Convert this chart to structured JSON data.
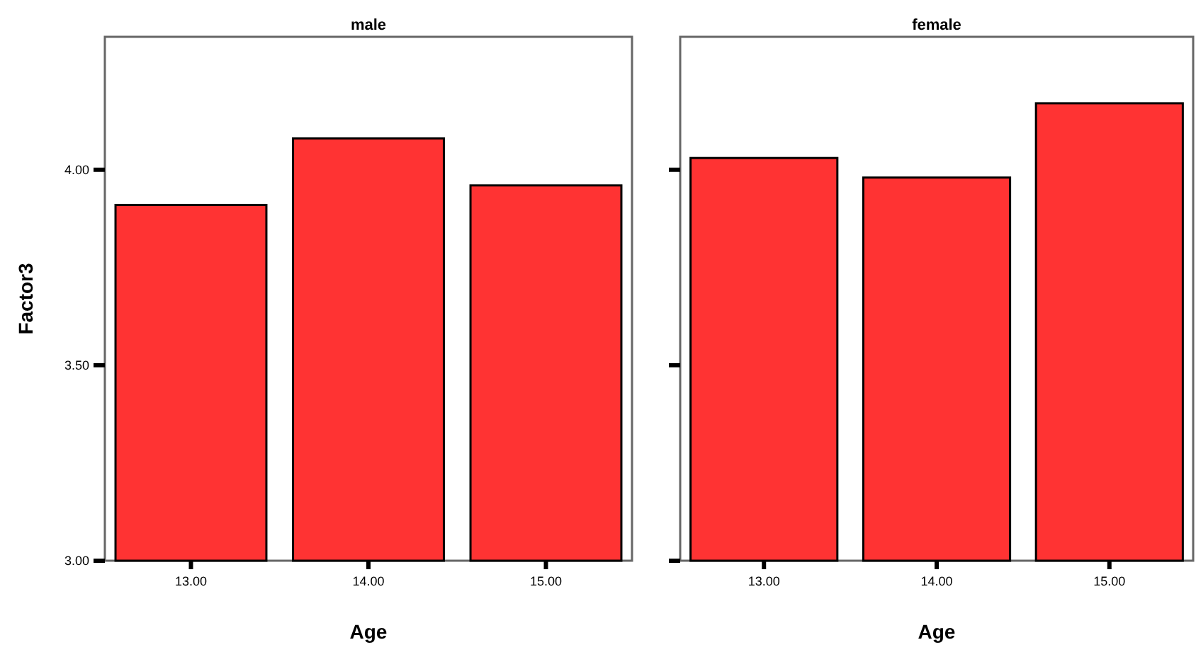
{
  "chart_data": [
    {
      "type": "bar",
      "title": "male",
      "xlabel": "Age",
      "ylabel": "Factor3",
      "categories": [
        "13.00",
        "14.00",
        "15.00"
      ],
      "values": [
        3.91,
        4.08,
        3.96
      ],
      "color": "#ff3333",
      "ylim": [
        3.0,
        4.34
      ],
      "yticks": [
        {
          "value": 3.0,
          "label": "3.00"
        },
        {
          "value": 3.5,
          "label": "3.50"
        },
        {
          "value": 4.0,
          "label": "4.00"
        }
      ],
      "grid": false
    },
    {
      "type": "bar",
      "title": "female",
      "xlabel": "Age",
      "categories": [
        "13.00",
        "14.00",
        "15.00"
      ],
      "values": [
        4.03,
        3.98,
        4.17
      ],
      "color": "#ff3333",
      "ylim": [
        3.0,
        4.34
      ],
      "yticks": [
        {
          "value": 3.0,
          "label": null
        },
        {
          "value": 3.5,
          "label": null
        },
        {
          "value": 4.0,
          "label": null
        }
      ],
      "grid": false,
      "tick_labels": "x"
    }
  ]
}
